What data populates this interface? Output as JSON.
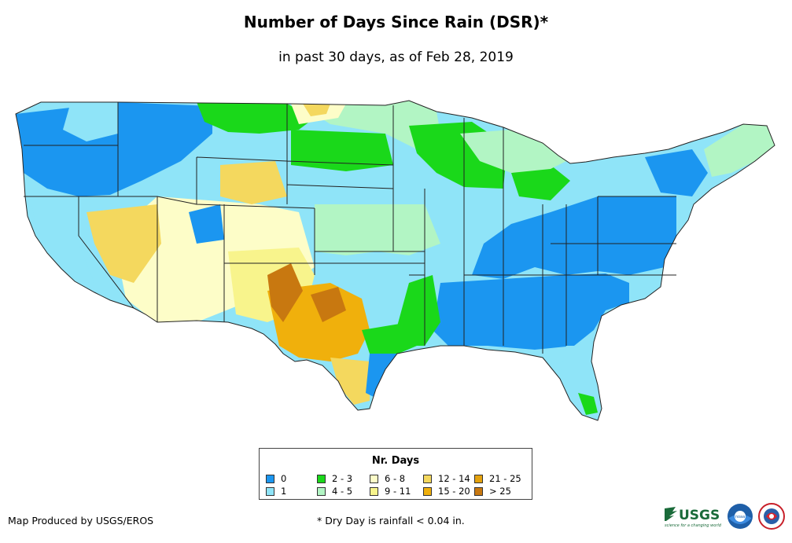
{
  "title": "Number of Days Since Rain (DSR)*",
  "subtitle": "in past 30 days, as of Feb 28, 2019",
  "legend": {
    "title": "Nr. Days",
    "items": [
      {
        "label": "0",
        "color": "#1b96f0"
      },
      {
        "label": "1",
        "color": "#8fe4f8"
      },
      {
        "label": "2 - 3",
        "color": "#1ad81a"
      },
      {
        "label": "4 - 5",
        "color": "#b2f5c4"
      },
      {
        "label": "6 - 8",
        "color": "#fdfdc8"
      },
      {
        "label": "9 - 11",
        "color": "#f8f48c"
      },
      {
        "label": "12 - 14",
        "color": "#f4d85e"
      },
      {
        "label": "15 - 20",
        "color": "#f0b00c"
      },
      {
        "label": "21 - 25",
        "color": "#e4a20e"
      },
      {
        "label": "> 25",
        "color": "#c87810"
      }
    ]
  },
  "credit": "Map Produced by USGS/EROS",
  "footnote": "* Dry Day is rainfall < 0.04 in.",
  "logos": {
    "usgs_text": "USGS",
    "usgs_tagline": "science for a changing world",
    "noaa_text": "noaa"
  }
}
